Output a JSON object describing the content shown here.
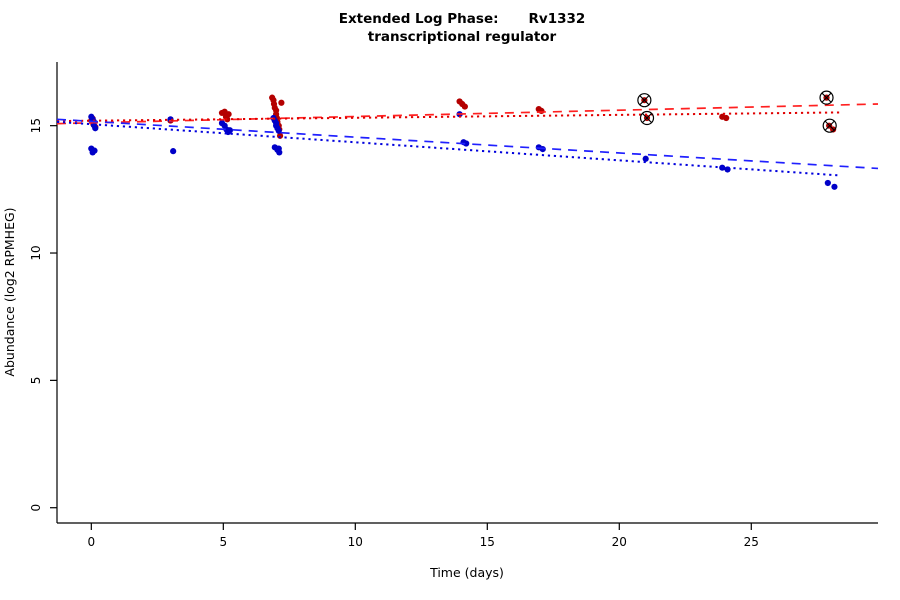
{
  "title": {
    "line1_left": "Extended Log Phase:",
    "line1_right": "Rv1332",
    "line2": "transcriptional regulator"
  },
  "chart_data": {
    "type": "scatter",
    "title": "Extended Log Phase: Rv1332 — transcriptional regulator",
    "xlabel": "Time  (days)",
    "ylabel": "Abundance  (log2 RPMHEG)",
    "xlim": [
      -1.3,
      29.8
    ],
    "ylim": [
      -0.6,
      17.5
    ],
    "xticks": [
      0,
      5,
      10,
      15,
      20,
      25
    ],
    "yticks": [
      0,
      5,
      10,
      15
    ],
    "grid": false,
    "legend": "none",
    "point_radius": 3.1,
    "series": [
      {
        "name": "red-series",
        "color": "#b40000",
        "points": [
          [
            0.0,
            15.2
          ],
          [
            0.08,
            15.05
          ],
          [
            0.15,
            14.95
          ],
          [
            0.05,
            15.28
          ],
          [
            3.0,
            15.2
          ],
          [
            4.95,
            15.5
          ],
          [
            5.05,
            15.55
          ],
          [
            5.1,
            15.35
          ],
          [
            5.2,
            15.45
          ],
          [
            5.15,
            15.25
          ],
          [
            6.85,
            16.1
          ],
          [
            6.9,
            16.0
          ],
          [
            6.92,
            15.85
          ],
          [
            6.95,
            15.7
          ],
          [
            7.0,
            15.6
          ],
          [
            7.0,
            15.45
          ],
          [
            7.03,
            15.3
          ],
          [
            7.05,
            15.15
          ],
          [
            7.1,
            15.0
          ],
          [
            7.12,
            14.85
          ],
          [
            7.15,
            14.6
          ],
          [
            7.2,
            15.9
          ],
          [
            13.95,
            15.95
          ],
          [
            14.05,
            15.85
          ],
          [
            14.15,
            15.75
          ],
          [
            16.95,
            15.65
          ],
          [
            17.05,
            15.58
          ],
          [
            20.95,
            16.0
          ],
          [
            21.05,
            15.3
          ],
          [
            23.9,
            15.35
          ],
          [
            24.05,
            15.3
          ],
          [
            27.85,
            16.1
          ],
          [
            27.95,
            15.0
          ],
          [
            28.1,
            14.85
          ]
        ]
      },
      {
        "name": "blue-series",
        "color": "#0000c8",
        "points": [
          [
            0.0,
            15.35
          ],
          [
            0.05,
            15.25
          ],
          [
            0.1,
            15.15
          ],
          [
            0.1,
            15.02
          ],
          [
            0.15,
            14.9
          ],
          [
            0.0,
            14.1
          ],
          [
            0.12,
            14.02
          ],
          [
            0.05,
            13.95
          ],
          [
            3.0,
            15.25
          ],
          [
            3.1,
            14.0
          ],
          [
            4.95,
            15.1
          ],
          [
            5.05,
            15.0
          ],
          [
            5.12,
            14.85
          ],
          [
            5.18,
            14.75
          ],
          [
            5.25,
            14.82
          ],
          [
            6.9,
            15.3
          ],
          [
            6.95,
            15.2
          ],
          [
            7.0,
            15.1
          ],
          [
            7.0,
            15.0
          ],
          [
            7.05,
            14.9
          ],
          [
            7.1,
            14.8
          ],
          [
            6.95,
            14.15
          ],
          [
            7.05,
            14.05
          ],
          [
            7.12,
            13.95
          ],
          [
            7.1,
            14.1
          ],
          [
            13.95,
            15.45
          ],
          [
            14.1,
            14.35
          ],
          [
            14.2,
            14.3
          ],
          [
            16.95,
            14.15
          ],
          [
            17.1,
            14.08
          ],
          [
            21.0,
            13.7
          ],
          [
            23.9,
            13.35
          ],
          [
            24.1,
            13.28
          ],
          [
            27.9,
            12.75
          ],
          [
            28.15,
            12.6
          ]
        ]
      }
    ],
    "outlier_markers": {
      "name": "circled-outlier-points",
      "symbol": "circle-with-x",
      "color": "#000000",
      "radius": 6.5,
      "points": [
        [
          20.95,
          16.0
        ],
        [
          21.05,
          15.3
        ],
        [
          27.85,
          16.1
        ],
        [
          27.97,
          15.0
        ]
      ]
    },
    "trend_lines": [
      {
        "name": "red-dashed-fit",
        "color": "#ff2020",
        "dash": "9,7",
        "width": 1.7,
        "x1": -1.3,
        "y1": 15.08,
        "x2": 29.8,
        "y2": 15.85
      },
      {
        "name": "red-dotted-fit",
        "color": "#e00000",
        "dash": "2.2,3.8",
        "width": 2.0,
        "x1": -1.3,
        "y1": 15.18,
        "x2": 28.4,
        "y2": 15.52
      },
      {
        "name": "blue-dashed-fit",
        "color": "#2020ff",
        "dash": "9,7",
        "width": 1.7,
        "x1": -1.3,
        "y1": 15.25,
        "x2": 29.8,
        "y2": 13.32
      },
      {
        "name": "blue-dotted-fit",
        "color": "#0000dd",
        "dash": "2.2,3.8",
        "width": 2.0,
        "x1": -1.3,
        "y1": 15.15,
        "x2": 28.3,
        "y2": 13.05
      }
    ],
    "axis_color": "#000000"
  }
}
